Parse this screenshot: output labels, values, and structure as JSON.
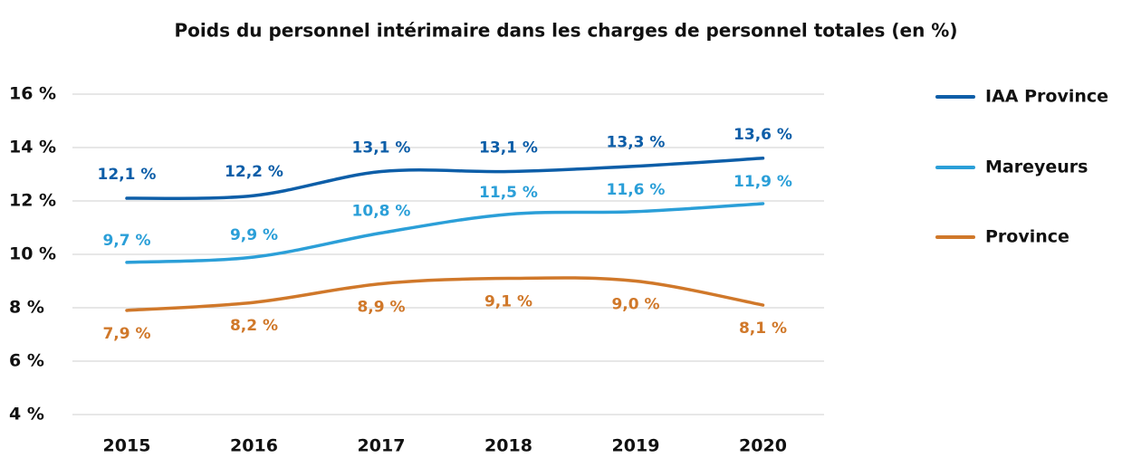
{
  "chart_data": {
    "type": "line",
    "title": "Poids du personnel intérimaire dans les charges de personnel totales (en %)",
    "categories": [
      "2015",
      "2016",
      "2017",
      "2018",
      "2019",
      "2020"
    ],
    "series": [
      {
        "name": "IAA Province",
        "color": "#0d5ea8",
        "values": [
          12.1,
          12.2,
          13.1,
          13.1,
          13.3,
          13.6
        ],
        "value_labels": [
          "12,1 %",
          "12,2 %",
          "13,1 %",
          "13,1 %",
          "13,3 %",
          "13,6 %"
        ]
      },
      {
        "name": "Mareyeurs",
        "color": "#2b9fd8",
        "values": [
          9.7,
          9.9,
          10.8,
          11.5,
          11.6,
          11.9
        ],
        "value_labels": [
          "9,7 %",
          "9,9 %",
          "10,8 %",
          "11,5 %",
          "11,6 %",
          "11,9 %"
        ]
      },
      {
        "name": "Province",
        "color": "#d0782a",
        "values": [
          7.9,
          8.2,
          8.9,
          9.1,
          9.0,
          8.1
        ],
        "value_labels": [
          "7,9 %",
          "8,2 %",
          "8,9 %",
          "9,1 %",
          "9,0 %",
          "8,1 %"
        ]
      }
    ],
    "ylim": [
      4,
      16
    ],
    "yticks": [
      {
        "value": 4,
        "label": "4 %"
      },
      {
        "value": 6,
        "label": "6 %"
      },
      {
        "value": 8,
        "label": "8 %"
      },
      {
        "value": 10,
        "label": "10 %"
      },
      {
        "value": 12,
        "label": "12 %"
      },
      {
        "value": 14,
        "label": "14 %"
      },
      {
        "value": 16,
        "label": "16 %"
      }
    ],
    "grid": true,
    "legend": "right"
  }
}
